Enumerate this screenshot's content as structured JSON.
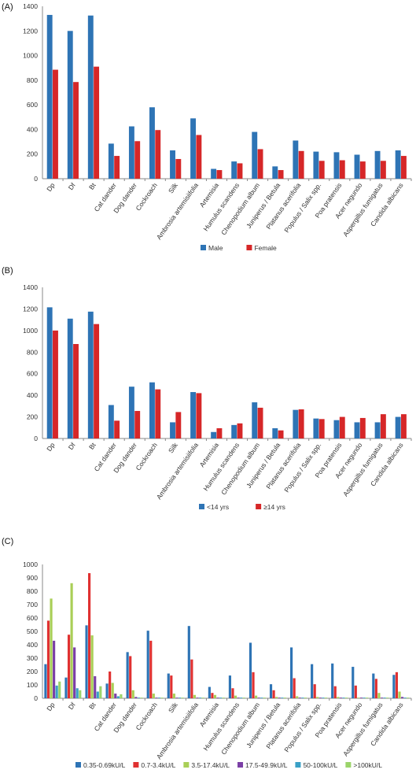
{
  "chart_data": [
    {
      "type": "bar",
      "panel_label": "(A)",
      "categories": [
        "Dp",
        "Df",
        "Bt",
        "Cat dander",
        "Dog dander",
        "Cockroach",
        "Silk",
        "Ambrosia artemisiifolia",
        "Artemisia",
        "Humulus scandens",
        "Chenopodium album",
        "Juniperus / Betula",
        "Platanus acerifolia",
        "Populus / Salix spp.",
        "Poa pratensis",
        "Acer negundo",
        "Aspergillus fumigatus",
        "Candida albicans"
      ],
      "yticks": [
        "0",
        "200",
        "400",
        "600",
        "800",
        "1000",
        "1200",
        "1400"
      ],
      "ylim": [
        0,
        1400
      ],
      "grid": false,
      "legend_position": "bottom",
      "series": [
        {
          "name": "Male",
          "color": "#2e74b5",
          "values": [
            1330,
            1200,
            1325,
            285,
            425,
            580,
            230,
            490,
            80,
            140,
            380,
            100,
            310,
            220,
            215,
            195,
            225,
            230
          ]
        },
        {
          "name": "Female",
          "color": "#d62728",
          "values": [
            885,
            785,
            910,
            185,
            305,
            395,
            160,
            355,
            70,
            125,
            240,
            70,
            225,
            145,
            150,
            140,
            145,
            185
          ]
        }
      ]
    },
    {
      "type": "bar",
      "panel_label": "(B)",
      "categories": [
        "Dp",
        "Df",
        "Bt",
        "Cat dander",
        "Dog dander",
        "Cockroach",
        "Silk",
        "Ambrosia artemisiifolia",
        "Artemisia",
        "Humulus scandens",
        "Chenopodium album",
        "Juniperus / Betula",
        "Platanus acerifolia",
        "Populus / Salix spp.",
        "Poa pratensis",
        "Acer negundo",
        "Aspergillus fumigatus",
        "Candida albicans"
      ],
      "yticks": [
        "0",
        "200",
        "400",
        "600",
        "800",
        "1000",
        "1200",
        "1400"
      ],
      "ylim": [
        0,
        1400
      ],
      "grid": false,
      "legend_position": "bottom",
      "series": [
        {
          "name": "<14 yrs",
          "color": "#2e74b5",
          "values": [
            1215,
            1110,
            1175,
            310,
            480,
            520,
            150,
            430,
            60,
            125,
            335,
            95,
            265,
            185,
            170,
            150,
            150,
            200
          ]
        },
        {
          "name": "≥14 yrs",
          "color": "#d62728",
          "values": [
            1000,
            875,
            1060,
            165,
            255,
            455,
            245,
            420,
            95,
            140,
            285,
            75,
            270,
            180,
            200,
            190,
            225,
            225
          ]
        }
      ]
    },
    {
      "type": "bar",
      "panel_label": "(C)",
      "categories": [
        "Dp",
        "Df",
        "Bt",
        "Cat dander",
        "Dog dander",
        "Cockroach",
        "Silk",
        "Ambrosia artemisiifolia",
        "Artemisia",
        "Humulus scandens",
        "Chenopodium album",
        "Juniperus / Betula",
        "Platanus acerifolia",
        "Populus / Salix spp.",
        "Poa pratensis",
        "Acer negundo",
        "Aspergillus fumigatus",
        "Candida albicans"
      ],
      "yticks": [
        "0",
        "100",
        "200",
        "300",
        "400",
        "500",
        "600",
        "700",
        "800",
        "900",
        "1000"
      ],
      "ylim": [
        0,
        1000
      ],
      "grid": false,
      "legend_position": "bottom",
      "series": [
        {
          "name": "0.35-0.69kU/L",
          "color": "#2e74b5",
          "values": [
            255,
            155,
            545,
            110,
            345,
            505,
            185,
            540,
            85,
            170,
            415,
            105,
            380,
            255,
            260,
            235,
            185,
            175
          ]
        },
        {
          "name": "0.7-3.4kU/L",
          "color": "#e03131",
          "values": [
            580,
            475,
            935,
            200,
            315,
            430,
            170,
            290,
            40,
            75,
            195,
            60,
            150,
            105,
            90,
            95,
            145,
            195
          ]
        },
        {
          "name": "3.5-17.4kU/L",
          "color": "#a9cf57",
          "values": [
            745,
            860,
            470,
            115,
            60,
            35,
            35,
            25,
            25,
            20,
            20,
            10,
            15,
            10,
            10,
            5,
            40,
            50
          ]
        },
        {
          "name": "17.5-49.9kU/L",
          "color": "#7b3fa6",
          "values": [
            430,
            380,
            165,
            35,
            10,
            5,
            5,
            5,
            5,
            5,
            5,
            5,
            5,
            5,
            5,
            5,
            5,
            10
          ]
        },
        {
          "name": "50-100kU/L",
          "color": "#3aa0c6",
          "values": [
            95,
            75,
            50,
            15,
            5,
            5,
            5,
            5,
            5,
            5,
            5,
            5,
            5,
            5,
            5,
            5,
            5,
            5
          ]
        },
        {
          "name": ">100kU/L",
          "color": "#9bd46a",
          "values": [
            125,
            60,
            90,
            30,
            5,
            5,
            5,
            5,
            5,
            5,
            5,
            5,
            5,
            5,
            5,
            5,
            5,
            5
          ]
        }
      ]
    }
  ]
}
